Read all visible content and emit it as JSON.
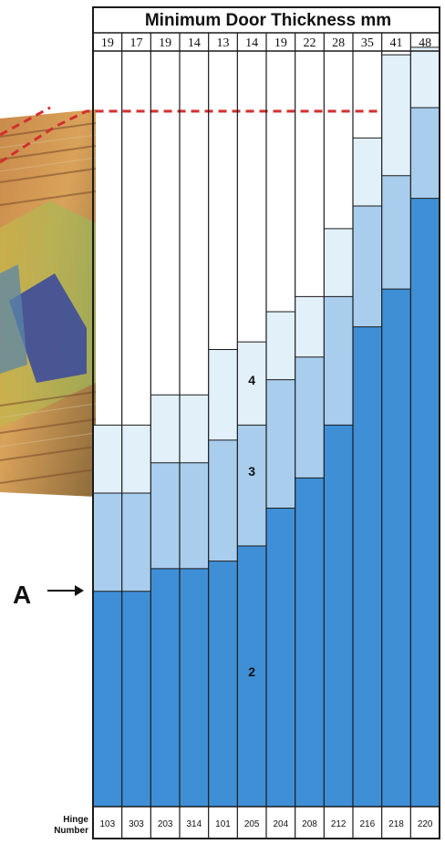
{
  "chart_data": {
    "type": "bar",
    "title": "Minimum Door Thickness mm",
    "thickness_row": [
      "19",
      "17",
      "19",
      "14",
      "13",
      "14",
      "19",
      "22",
      "28",
      "35",
      "41",
      "48"
    ],
    "categories": [
      "103",
      "303",
      "203",
      "314",
      "101",
      "205",
      "204",
      "208",
      "212",
      "216",
      "218",
      "220"
    ],
    "hinge_label": [
      "Hinge",
      "Number"
    ],
    "zone_labels": [
      "2",
      "3",
      "4"
    ],
    "marker_label": "A",
    "series": [
      {
        "zone": "2",
        "values": [
          0.0,
          0.0,
          0.03,
          0.03,
          0.04,
          0.06,
          0.11,
          0.15,
          0.22,
          0.35,
          0.4,
          0.52
        ],
        "color": "#3f8fd6"
      },
      {
        "zone": "3",
        "values": [
          0.13,
          0.13,
          0.14,
          0.14,
          0.16,
          0.16,
          0.17,
          0.16,
          0.17,
          0.16,
          0.15,
          0.12
        ],
        "color": "#a9cded"
      },
      {
        "zone": "4",
        "values": [
          0.09,
          0.09,
          0.09,
          0.09,
          0.12,
          0.11,
          0.09,
          0.08,
          0.09,
          0.09,
          0.16,
          0.08
        ],
        "color": "#e2f0fa"
      }
    ],
    "reference_line": {
      "style": "dashed",
      "color": "#d32f2f"
    }
  },
  "colors": {
    "grid": "#1a1a1a",
    "background": "#ffffff"
  }
}
